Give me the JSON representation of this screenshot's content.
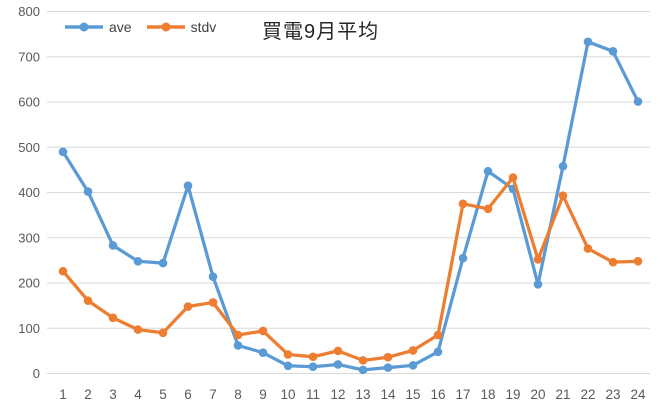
{
  "chart_data": {
    "type": "line",
    "title": "買電9月平均",
    "x": [
      1,
      2,
      3,
      4,
      5,
      6,
      7,
      8,
      9,
      10,
      11,
      12,
      13,
      14,
      15,
      16,
      17,
      18,
      19,
      20,
      21,
      22,
      23,
      24
    ],
    "series": [
      {
        "name": "ave",
        "color": "#5B9BD5",
        "values": [
          490,
          402,
          283,
          248,
          244,
          415,
          214,
          62,
          46,
          17,
          15,
          20,
          8,
          13,
          18,
          48,
          255,
          447,
          408,
          197,
          458,
          733,
          712,
          601
        ]
      },
      {
        "name": "stdv",
        "color": "#ED7D31",
        "values": [
          226,
          161,
          123,
          97,
          90,
          148,
          157,
          85,
          94,
          42,
          37,
          50,
          29,
          36,
          51,
          85,
          375,
          364,
          433,
          252,
          393,
          276,
          246,
          248
        ]
      }
    ],
    "xlabel": "",
    "ylabel": "",
    "ylim": [
      0,
      800
    ],
    "ytick_step": 100,
    "yticks": [
      0,
      100,
      200,
      300,
      400,
      500,
      600,
      700,
      800
    ],
    "grid": true,
    "legend_position": "top-left",
    "marker": "circle"
  },
  "style": {
    "grid_color": "#D9D9D9",
    "tick_label_color": "#595959",
    "background": "#FFFFFF"
  }
}
